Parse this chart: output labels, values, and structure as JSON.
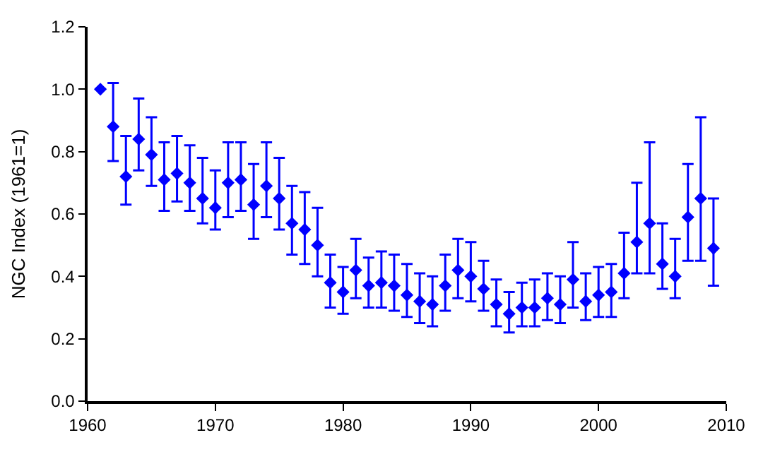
{
  "chart_data": {
    "type": "scatter",
    "ylabel": "NGC Index (1961=1)",
    "marker": "diamond",
    "legend": false,
    "x": [
      1961,
      1962,
      1963,
      1964,
      1965,
      1966,
      1967,
      1968,
      1969,
      1970,
      1971,
      1972,
      1973,
      1974,
      1975,
      1976,
      1977,
      1978,
      1979,
      1980,
      1981,
      1982,
      1983,
      1984,
      1985,
      1986,
      1987,
      1988,
      1989,
      1990,
      1991,
      1992,
      1993,
      1994,
      1995,
      1996,
      1997,
      1998,
      1999,
      2000,
      2001,
      2002,
      2003,
      2004,
      2005,
      2006,
      2007,
      2008,
      2009
    ],
    "series": [
      {
        "color": "#0000ff",
        "values": [
          1.0,
          0.88,
          0.72,
          0.84,
          0.79,
          0.71,
          0.73,
          0.7,
          0.65,
          0.62,
          0.7,
          0.71,
          0.63,
          0.69,
          0.65,
          0.57,
          0.55,
          0.5,
          0.38,
          0.35,
          0.42,
          0.37,
          0.38,
          0.37,
          0.34,
          0.32,
          0.31,
          0.37,
          0.42,
          0.4,
          0.36,
          0.31,
          0.28,
          0.3,
          0.3,
          0.33,
          0.31,
          0.39,
          0.32,
          0.34,
          0.35,
          0.41,
          0.51,
          0.57,
          0.44,
          0.4,
          0.59,
          0.65,
          0.49
        ],
        "errors": [
          null,
          [
            0.77,
            1.02
          ],
          [
            0.63,
            0.85
          ],
          [
            0.74,
            0.97
          ],
          [
            0.69,
            0.91
          ],
          [
            0.61,
            0.83
          ],
          [
            0.64,
            0.85
          ],
          [
            0.61,
            0.82
          ],
          [
            0.57,
            0.78
          ],
          [
            0.55,
            0.74
          ],
          [
            0.59,
            0.83
          ],
          [
            0.61,
            0.83
          ],
          [
            0.52,
            0.76
          ],
          [
            0.59,
            0.83
          ],
          [
            0.55,
            0.78
          ],
          [
            0.47,
            0.69
          ],
          [
            0.44,
            0.67
          ],
          [
            0.4,
            0.62
          ],
          [
            0.3,
            0.47
          ],
          [
            0.28,
            0.43
          ],
          [
            0.33,
            0.52
          ],
          [
            0.3,
            0.46
          ],
          [
            0.3,
            0.48
          ],
          [
            0.29,
            0.47
          ],
          [
            0.27,
            0.44
          ],
          [
            0.25,
            0.41
          ],
          [
            0.24,
            0.4
          ],
          [
            0.29,
            0.47
          ],
          [
            0.33,
            0.52
          ],
          [
            0.32,
            0.51
          ],
          [
            0.29,
            0.45
          ],
          [
            0.24,
            0.39
          ],
          [
            0.22,
            0.35
          ],
          [
            0.24,
            0.38
          ],
          [
            0.24,
            0.39
          ],
          [
            0.26,
            0.41
          ],
          [
            0.25,
            0.4
          ],
          [
            0.3,
            0.51
          ],
          [
            0.26,
            0.41
          ],
          [
            0.27,
            0.43
          ],
          [
            0.27,
            0.44
          ],
          [
            0.33,
            0.54
          ],
          [
            0.41,
            0.7
          ],
          [
            0.41,
            0.83
          ],
          [
            0.36,
            0.57
          ],
          [
            0.33,
            0.52
          ],
          [
            0.45,
            0.76
          ],
          [
            0.45,
            0.91
          ],
          [
            0.37,
            0.65
          ]
        ]
      }
    ],
    "xlim": [
      1960,
      2010
    ],
    "xticks": [
      1960,
      1970,
      1980,
      1990,
      2000,
      2010
    ],
    "ylim": [
      0,
      1.2
    ],
    "yticks": [
      {
        "value": 0,
        "label": "0.0"
      },
      0.2,
      0.4,
      0.6,
      0.8,
      {
        "value": 1,
        "label": "1.0"
      },
      {
        "value": 1.2,
        "label": "1.2"
      }
    ]
  }
}
